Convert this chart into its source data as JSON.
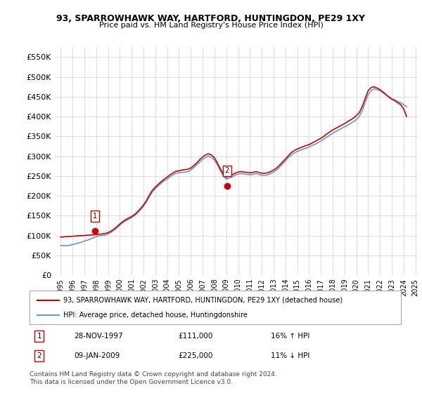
{
  "title": "93, SPARROWHAWK WAY, HARTFORD, HUNTINGDON, PE29 1XY",
  "subtitle": "Price paid vs. HM Land Registry's House Price Index (HPI)",
  "legend_red": "93, SPARROWHAWK WAY, HARTFORD, HUNTINGDON, PE29 1XY (detached house)",
  "legend_blue": "HPI: Average price, detached house, Huntingdonshire",
  "transaction1_label": "1",
  "transaction1_date": "28-NOV-1997",
  "transaction1_price": "£111,000",
  "transaction1_hpi": "16% ↑ HPI",
  "transaction2_label": "2",
  "transaction2_date": "09-JAN-2009",
  "transaction2_price": "£225,000",
  "transaction2_hpi": "11% ↓ HPI",
  "footnote": "Contains HM Land Registry data © Crown copyright and database right 2024.\nThis data is licensed under the Open Government Licence v3.0.",
  "ylim": [
    0,
    575000
  ],
  "yticks": [
    0,
    50000,
    100000,
    150000,
    200000,
    250000,
    300000,
    350000,
    400000,
    450000,
    500000,
    550000
  ],
  "red_color": "#cc0000",
  "blue_color": "#6699cc",
  "grid_color": "#dddddd",
  "background_color": "#ffffff",
  "marker1_x": 1997.9,
  "marker1_y": 111000,
  "marker2_x": 2009.05,
  "marker2_y": 225000,
  "hpi_years": [
    1995.0,
    1995.25,
    1995.5,
    1995.75,
    1996.0,
    1996.25,
    1996.5,
    1996.75,
    1997.0,
    1997.25,
    1997.5,
    1997.75,
    1998.0,
    1998.25,
    1998.5,
    1998.75,
    1999.0,
    1999.25,
    1999.5,
    1999.75,
    2000.0,
    2000.25,
    2000.5,
    2000.75,
    2001.0,
    2001.25,
    2001.5,
    2001.75,
    2002.0,
    2002.25,
    2002.5,
    2002.75,
    2003.0,
    2003.25,
    2003.5,
    2003.75,
    2004.0,
    2004.25,
    2004.5,
    2004.75,
    2005.0,
    2005.25,
    2005.5,
    2005.75,
    2006.0,
    2006.25,
    2006.5,
    2006.75,
    2007.0,
    2007.25,
    2007.5,
    2007.75,
    2008.0,
    2008.25,
    2008.5,
    2008.75,
    2009.0,
    2009.25,
    2009.5,
    2009.75,
    2010.0,
    2010.25,
    2010.5,
    2010.75,
    2011.0,
    2011.25,
    2011.5,
    2011.75,
    2012.0,
    2012.25,
    2012.5,
    2012.75,
    2013.0,
    2013.25,
    2013.5,
    2013.75,
    2014.0,
    2014.25,
    2014.5,
    2014.75,
    2015.0,
    2015.25,
    2015.5,
    2015.75,
    2016.0,
    2016.25,
    2016.5,
    2016.75,
    2017.0,
    2017.25,
    2017.5,
    2017.75,
    2018.0,
    2018.25,
    2018.5,
    2018.75,
    2019.0,
    2019.25,
    2019.5,
    2019.75,
    2020.0,
    2020.25,
    2020.5,
    2020.75,
    2021.0,
    2021.25,
    2021.5,
    2021.75,
    2022.0,
    2022.25,
    2022.5,
    2022.75,
    2023.0,
    2023.25,
    2023.5,
    2023.75,
    2024.0,
    2024.25
  ],
  "hpi_values": [
    75000,
    74000,
    74500,
    75000,
    77000,
    79000,
    81000,
    83000,
    86000,
    88000,
    91000,
    94000,
    97000,
    99000,
    100000,
    101000,
    104000,
    108000,
    113000,
    119000,
    126000,
    132000,
    137000,
    141000,
    145000,
    150000,
    157000,
    165000,
    174000,
    185000,
    198000,
    210000,
    218000,
    225000,
    232000,
    238000,
    242000,
    248000,
    253000,
    257000,
    258000,
    259000,
    260000,
    261000,
    265000,
    271000,
    278000,
    285000,
    292000,
    297000,
    300000,
    297000,
    290000,
    278000,
    263000,
    250000,
    242000,
    245000,
    248000,
    252000,
    255000,
    256000,
    255000,
    254000,
    253000,
    254000,
    256000,
    254000,
    252000,
    252000,
    253000,
    256000,
    260000,
    265000,
    272000,
    280000,
    288000,
    296000,
    303000,
    308000,
    312000,
    315000,
    318000,
    320000,
    323000,
    327000,
    330000,
    334000,
    338000,
    343000,
    348000,
    353000,
    358000,
    362000,
    366000,
    370000,
    374000,
    378000,
    382000,
    387000,
    392000,
    400000,
    415000,
    435000,
    455000,
    465000,
    470000,
    468000,
    465000,
    460000,
    455000,
    450000,
    445000,
    442000,
    438000,
    435000,
    430000,
    425000
  ],
  "red_years": [
    1995.0,
    1995.25,
    1995.5,
    1995.75,
    1996.0,
    1996.25,
    1996.5,
    1996.75,
    1997.0,
    1997.25,
    1997.5,
    1997.75,
    1998.0,
    1998.25,
    1998.5,
    1998.75,
    1999.0,
    1999.25,
    1999.5,
    1999.75,
    2000.0,
    2000.25,
    2000.5,
    2000.75,
    2001.0,
    2001.25,
    2001.5,
    2001.75,
    2002.0,
    2002.25,
    2002.5,
    2002.75,
    2003.0,
    2003.25,
    2003.5,
    2003.75,
    2004.0,
    2004.25,
    2004.5,
    2004.75,
    2005.0,
    2005.25,
    2005.5,
    2005.75,
    2006.0,
    2006.25,
    2006.5,
    2006.75,
    2007.0,
    2007.25,
    2007.5,
    2007.75,
    2008.0,
    2008.25,
    2008.5,
    2008.75,
    2009.0,
    2009.25,
    2009.5,
    2009.75,
    2010.0,
    2010.25,
    2010.5,
    2010.75,
    2011.0,
    2011.25,
    2011.5,
    2011.75,
    2012.0,
    2012.25,
    2012.5,
    2012.75,
    2013.0,
    2013.25,
    2013.5,
    2013.75,
    2014.0,
    2014.25,
    2014.5,
    2014.75,
    2015.0,
    2015.25,
    2015.5,
    2015.75,
    2016.0,
    2016.25,
    2016.5,
    2016.75,
    2017.0,
    2017.25,
    2017.5,
    2017.75,
    2018.0,
    2018.25,
    2018.5,
    2018.75,
    2019.0,
    2019.25,
    2019.5,
    2019.75,
    2020.0,
    2020.25,
    2020.5,
    2020.75,
    2021.0,
    2021.25,
    2021.5,
    2021.75,
    2022.0,
    2022.25,
    2022.5,
    2022.75,
    2023.0,
    2023.25,
    2023.5,
    2023.75,
    2024.0,
    2024.25
  ],
  "red_values": [
    96000,
    96500,
    97000,
    97500,
    98000,
    98500,
    99000,
    99500,
    100000,
    100500,
    101000,
    101500,
    102000,
    103000,
    104000,
    105000,
    107000,
    111000,
    116000,
    122000,
    129000,
    135000,
    140000,
    144000,
    148000,
    153000,
    160000,
    168000,
    177000,
    188000,
    202000,
    214000,
    222000,
    229000,
    236000,
    242000,
    247000,
    253000,
    258000,
    262000,
    263000,
    265000,
    266000,
    267000,
    270000,
    276000,
    283000,
    291000,
    298000,
    303000,
    306000,
    303000,
    296000,
    283000,
    268000,
    255000,
    247000,
    250000,
    253000,
    257000,
    260000,
    261000,
    260000,
    259000,
    258000,
    259000,
    261000,
    259000,
    257000,
    257000,
    258000,
    261000,
    265000,
    270000,
    277000,
    285000,
    293000,
    301000,
    309000,
    314000,
    318000,
    321000,
    324000,
    327000,
    329000,
    333000,
    337000,
    341000,
    345000,
    350000,
    356000,
    361000,
    366000,
    370000,
    374000,
    378000,
    382000,
    387000,
    391000,
    396000,
    402000,
    410000,
    425000,
    445000,
    465000,
    473000,
    475000,
    472000,
    468000,
    462000,
    456000,
    449000,
    444000,
    440000,
    435000,
    430000,
    420000,
    400000
  ],
  "xlim_start": 1994.5,
  "xlim_end": 2025.2
}
